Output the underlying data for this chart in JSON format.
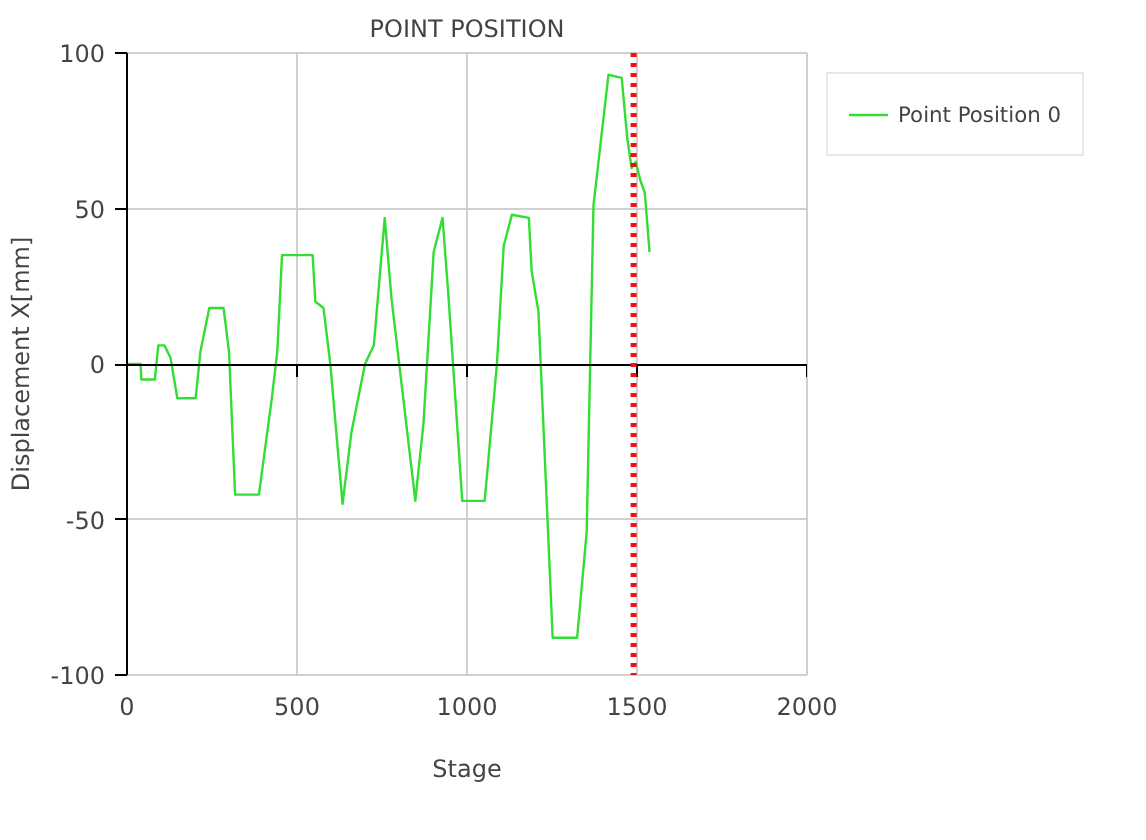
{
  "chart_data": {
    "type": "line",
    "title": "POINT POSITION",
    "xlabel": "Stage",
    "ylabel": "Displacement X[mm]",
    "xlim": [
      0,
      2000
    ],
    "xticks": [
      0,
      500,
      1000,
      1500,
      2000
    ],
    "ylim": [
      -100,
      100
    ],
    "yticks": [
      -100,
      -50,
      0,
      50,
      100
    ],
    "grid": true,
    "legend": "top right",
    "series": [
      {
        "name": "Point Position 0",
        "color": "#33dd33",
        "x": [
          0,
          40,
          42,
          82,
          92,
          110,
          128,
          148,
          202,
          216,
          242,
          284,
          300,
          318,
          388,
          426,
          442,
          456,
          546,
          554,
          578,
          598,
          634,
          660,
          700,
          726,
          758,
          778,
          848,
          872,
          902,
          928,
          946,
          986,
          1052,
          1088,
          1108,
          1132,
          1182,
          1190,
          1210,
          1252,
          1324,
          1352,
          1372,
          1416,
          1455,
          1471,
          1484,
          1496,
          1510,
          1523,
          1537
        ],
        "values": [
          0,
          0,
          -5,
          -5,
          6,
          6,
          2,
          -11,
          -11,
          4,
          18,
          18,
          4,
          -42,
          -42,
          -11,
          4,
          35,
          35,
          20,
          18,
          0,
          -45,
          -22,
          0,
          6,
          47,
          21,
          -44,
          -19,
          36,
          47,
          21,
          -44,
          -44,
          0,
          38,
          48,
          47,
          30,
          17,
          -88,
          -88,
          -54,
          51,
          93,
          92,
          73,
          63,
          65,
          59,
          55,
          36
        ]
      }
    ],
    "ref_lines": [
      {
        "axis": "x",
        "value": 1490,
        "color": "#ee1111",
        "line_style": "dotted"
      }
    ]
  }
}
